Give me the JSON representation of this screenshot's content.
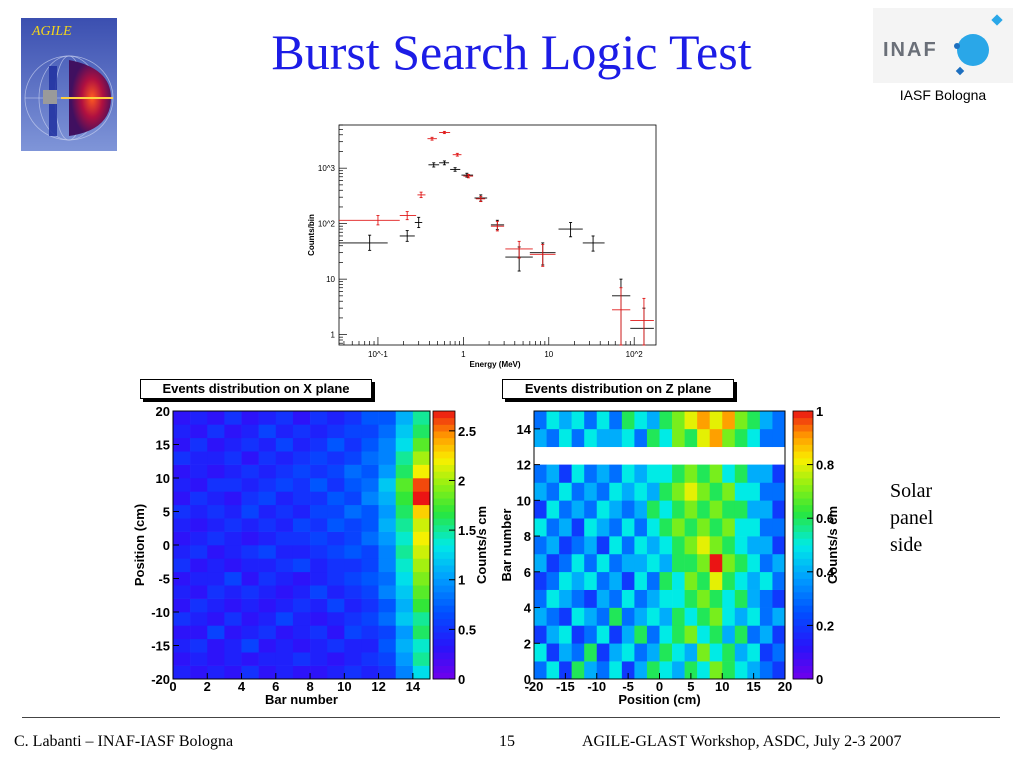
{
  "slide": {
    "title": "Burst Search Logic Test",
    "agile_logo_text": "AGILE",
    "inaf_logo_text": "INAF",
    "institute": "IASF Bologna",
    "solar_note": "Solar\npanel\nside",
    "footer_left": "C. Labanti – INAF-IASF Bologna",
    "page_number": "15",
    "footer_right": "AGILE-GLAST Workshop, ASDC, July 2-3 2007"
  },
  "colors": {
    "title": "#1c1ce6",
    "series_black": "#000000",
    "series_red": "#e01818"
  },
  "chart_data": [
    {
      "type": "scatter",
      "xlabel": "Energy (MeV)",
      "ylabel": "Counts/bin",
      "xscale": "log",
      "yscale": "log",
      "xlim": [
        0.035,
        180
      ],
      "ylim": [
        0.65,
        6000
      ],
      "xticks": [
        "10^-1",
        "1",
        "10",
        "10^2"
      ],
      "yticks": [
        "1",
        "10",
        "10^2",
        "10^3"
      ],
      "grid": false,
      "series": [
        {
          "color": "#000000",
          "points": [
            {
              "x": 0.08,
              "y": 45,
              "xlo": 0.035,
              "xhi": 0.13,
              "ylo": 33,
              "yhi": 62
            },
            {
              "x": 0.22,
              "y": 60,
              "xlo": 0.18,
              "xhi": 0.27,
              "ylo": 48,
              "yhi": 75
            },
            {
              "x": 0.3,
              "y": 105,
              "xlo": 0.27,
              "xhi": 0.33,
              "ylo": 85,
              "yhi": 130
            },
            {
              "x": 0.45,
              "y": 1150,
              "xlo": 0.39,
              "xhi": 0.52,
              "ylo": 1050,
              "yhi": 1250
            },
            {
              "x": 0.6,
              "y": 1250,
              "xlo": 0.52,
              "xhi": 0.68,
              "ylo": 1150,
              "yhi": 1350
            },
            {
              "x": 0.8,
              "y": 950,
              "xlo": 0.7,
              "xhi": 0.92,
              "ylo": 880,
              "yhi": 1020
            },
            {
              "x": 1.1,
              "y": 750,
              "xlo": 0.95,
              "xhi": 1.3,
              "ylo": 690,
              "yhi": 810
            },
            {
              "x": 1.6,
              "y": 290,
              "xlo": 1.35,
              "xhi": 1.9,
              "ylo": 255,
              "yhi": 330
            },
            {
              "x": 2.5,
              "y": 95,
              "xlo": 2.1,
              "xhi": 3.0,
              "ylo": 78,
              "yhi": 115
            },
            {
              "x": 4.5,
              "y": 25,
              "xlo": 3.1,
              "xhi": 6.5,
              "ylo": 14,
              "yhi": 38
            },
            {
              "x": 8.5,
              "y": 30,
              "xlo": 6.0,
              "xhi": 12.0,
              "ylo": 18,
              "yhi": 45
            },
            {
              "x": 18,
              "y": 80,
              "xlo": 13,
              "xhi": 25,
              "ylo": 58,
              "yhi": 105
            },
            {
              "x": 33,
              "y": 45,
              "xlo": 25,
              "xhi": 45,
              "ylo": 32,
              "yhi": 60
            },
            {
              "x": 70,
              "y": 5,
              "xlo": 55,
              "xhi": 90,
              "ylo": 0.65,
              "yhi": 10
            },
            {
              "x": 130,
              "y": 1.3,
              "xlo": 90,
              "xhi": 170,
              "ylo": 0.65,
              "yhi": 3
            }
          ]
        },
        {
          "color": "#e01818",
          "points": [
            {
              "x": 0.1,
              "y": 115,
              "xlo": 0.035,
              "xhi": 0.18,
              "ylo": 95,
              "yhi": 140
            },
            {
              "x": 0.22,
              "y": 140,
              "xlo": 0.18,
              "xhi": 0.28,
              "ylo": 118,
              "yhi": 165
            },
            {
              "x": 0.32,
              "y": 330,
              "xlo": 0.29,
              "xhi": 0.36,
              "ylo": 295,
              "yhi": 370
            },
            {
              "x": 0.43,
              "y": 3400,
              "xlo": 0.38,
              "xhi": 0.49,
              "ylo": 3200,
              "yhi": 3600
            },
            {
              "x": 0.6,
              "y": 4400,
              "xlo": 0.52,
              "xhi": 0.7,
              "ylo": 4200,
              "yhi": 4600
            },
            {
              "x": 0.85,
              "y": 1750,
              "xlo": 0.75,
              "xhi": 0.95,
              "ylo": 1650,
              "yhi": 1850
            },
            {
              "x": 1.15,
              "y": 720,
              "xlo": 1.0,
              "xhi": 1.3,
              "ylo": 670,
              "yhi": 770
            },
            {
              "x": 1.6,
              "y": 280,
              "xlo": 1.4,
              "xhi": 1.8,
              "ylo": 250,
              "yhi": 310
            },
            {
              "x": 2.5,
              "y": 90,
              "xlo": 2.1,
              "xhi": 3.0,
              "ylo": 74,
              "yhi": 110
            },
            {
              "x": 4.5,
              "y": 35,
              "xlo": 3.1,
              "xhi": 6.5,
              "ylo": 24,
              "yhi": 48
            },
            {
              "x": 8.5,
              "y": 28,
              "xlo": 6.0,
              "xhi": 12.0,
              "ylo": 17,
              "yhi": 42
            },
            {
              "x": 70,
              "y": 2.8,
              "xlo": 55,
              "xhi": 90,
              "ylo": 0.65,
              "yhi": 7
            },
            {
              "x": 130,
              "y": 1.8,
              "xlo": 90,
              "xhi": 170,
              "ylo": 0.65,
              "yhi": 4.5
            }
          ]
        }
      ]
    },
    {
      "type": "heatmap",
      "title": "Events distribution on X plane",
      "xlabel": "Bar number",
      "ylabel": "Position (cm)",
      "colorbar_label": "Counts/s cm",
      "xlim": [
        0,
        15
      ],
      "ylim": [
        -20,
        20
      ],
      "xticks": [
        "0",
        "2",
        "4",
        "6",
        "8",
        "10",
        "12",
        "14"
      ],
      "yticks": [
        "-20",
        "-15",
        "-10",
        "-5",
        "0",
        "5",
        "10",
        "15",
        "20"
      ],
      "colorbar_ticks": [
        "0",
        "0.5",
        "1",
        "1.5",
        "2",
        "2.5"
      ],
      "zlim": [
        0,
        2.7
      ],
      "nx": 15,
      "ny": 20,
      "values": [
        [
          0.4,
          0.3,
          0.4,
          0.3,
          0.5,
          0.3,
          0.4,
          0.3,
          0.3,
          0.4,
          0.5,
          0.4,
          0.5,
          0.9,
          1.3
        ],
        [
          0.3,
          0.4,
          0.3,
          0.4,
          0.3,
          0.4,
          0.4,
          0.5,
          0.4,
          0.3,
          0.4,
          0.5,
          0.6,
          1.0,
          1.5
        ],
        [
          0.4,
          0.5,
          0.3,
          0.4,
          0.6,
          0.3,
          0.4,
          0.3,
          0.4,
          0.5,
          0.4,
          0.4,
          0.7,
          1.1,
          1.4
        ],
        [
          0.3,
          0.3,
          0.6,
          0.3,
          0.4,
          0.5,
          0.3,
          0.4,
          0.5,
          0.3,
          0.6,
          0.5,
          0.6,
          1.0,
          1.6
        ],
        [
          0.5,
          0.4,
          0.3,
          0.5,
          0.3,
          0.4,
          0.6,
          0.4,
          0.3,
          0.4,
          0.5,
          0.6,
          0.8,
          1.2,
          1.5
        ],
        [
          0.3,
          0.5,
          0.4,
          0.3,
          0.4,
          0.3,
          0.4,
          0.5,
          0.4,
          0.6,
          0.4,
          0.5,
          0.7,
          1.1,
          1.7
        ],
        [
          0.4,
          0.3,
          0.5,
          0.4,
          0.5,
          0.4,
          0.3,
          0.4,
          0.6,
          0.4,
          0.5,
          0.6,
          0.9,
          1.2,
          1.8
        ],
        [
          0.3,
          0.4,
          0.4,
          0.6,
          0.3,
          0.5,
          0.4,
          0.3,
          0.4,
          0.5,
          0.6,
          0.7,
          0.8,
          1.3,
          1.9
        ],
        [
          0.5,
          0.3,
          0.4,
          0.3,
          0.4,
          0.4,
          0.5,
          0.6,
          0.4,
          0.5,
          0.5,
          0.6,
          0.9,
          1.4,
          2.0
        ],
        [
          0.4,
          0.5,
          0.3,
          0.4,
          0.5,
          0.6,
          0.4,
          0.4,
          0.5,
          0.6,
          0.7,
          0.6,
          0.9,
          1.5,
          2.1
        ],
        [
          0.3,
          0.4,
          0.5,
          0.4,
          0.3,
          0.4,
          0.5,
          0.5,
          0.6,
          0.5,
          0.6,
          0.8,
          1.0,
          1.4,
          2.2
        ],
        [
          0.4,
          0.3,
          0.4,
          0.5,
          0.4,
          0.5,
          0.4,
          0.6,
          0.5,
          0.7,
          0.6,
          0.7,
          1.1,
          1.5,
          2.1
        ],
        [
          0.5,
          0.4,
          0.5,
          0.4,
          0.6,
          0.4,
          0.5,
          0.4,
          0.6,
          0.6,
          0.8,
          0.7,
          1.0,
          1.6,
          2.3
        ],
        [
          0.3,
          0.5,
          0.4,
          0.3,
          0.5,
          0.6,
          0.4,
          0.5,
          0.5,
          0.7,
          0.6,
          0.9,
          1.1,
          1.7,
          2.7
        ],
        [
          0.4,
          0.3,
          0.5,
          0.5,
          0.4,
          0.5,
          0.6,
          0.5,
          0.7,
          0.5,
          0.7,
          0.8,
          1.2,
          1.8,
          2.6
        ],
        [
          0.3,
          0.4,
          0.3,
          0.4,
          0.5,
          0.4,
          0.5,
          0.6,
          0.5,
          0.6,
          0.8,
          0.7,
          1.0,
          1.6,
          2.2
        ],
        [
          0.5,
          0.4,
          0.4,
          0.5,
          0.3,
          0.5,
          0.4,
          0.5,
          0.6,
          0.5,
          0.6,
          0.8,
          0.9,
          1.5,
          2.0
        ],
        [
          0.3,
          0.5,
          0.3,
          0.4,
          0.5,
          0.4,
          0.6,
          0.4,
          0.5,
          0.7,
          0.5,
          0.7,
          0.9,
          1.3,
          1.8
        ],
        [
          0.4,
          0.3,
          0.5,
          0.3,
          0.4,
          0.6,
          0.4,
          0.5,
          0.4,
          0.5,
          0.6,
          0.6,
          0.8,
          1.2,
          1.6
        ],
        [
          0.3,
          0.4,
          0.3,
          0.5,
          0.3,
          0.4,
          0.5,
          0.3,
          0.5,
          0.4,
          0.5,
          0.7,
          0.7,
          1.1,
          1.5
        ]
      ]
    },
    {
      "type": "heatmap",
      "title": "Events distribution on Z plane",
      "xlabel": "Position (cm)",
      "ylabel": "Bar number",
      "colorbar_label": "Counts/s cm",
      "xlim": [
        -20,
        20
      ],
      "ylim": [
        0,
        15
      ],
      "xticks": [
        "-20",
        "-15",
        "-10",
        "-5",
        "0",
        "5",
        "10",
        "15",
        "20"
      ],
      "yticks": [
        "0",
        "2",
        "4",
        "6",
        "8",
        "10",
        "12",
        "14"
      ],
      "colorbar_ticks": [
        "0",
        "0.2",
        "0.4",
        "0.6",
        "0.8",
        "1"
      ],
      "zlim": [
        0,
        1
      ],
      "nx": 20,
      "ny": 15,
      "empty_rows": [
        12
      ],
      "values": [
        [
          0.3,
          0.5,
          0.2,
          0.6,
          0.4,
          0.3,
          0.5,
          0.2,
          0.4,
          0.6,
          0.5,
          0.4,
          0.6,
          0.5,
          0.7,
          0.6,
          0.5,
          0.4,
          0.3,
          0.2
        ],
        [
          0.5,
          0.2,
          0.4,
          0.3,
          0.6,
          0.2,
          0.4,
          0.5,
          0.3,
          0.4,
          0.6,
          0.5,
          0.4,
          0.7,
          0.5,
          0.6,
          0.4,
          0.5,
          0.2,
          0.3
        ],
        [
          0.2,
          0.4,
          0.5,
          0.2,
          0.3,
          0.5,
          0.2,
          0.4,
          0.6,
          0.3,
          0.5,
          0.6,
          0.7,
          0.5,
          0.6,
          0.4,
          0.6,
          0.3,
          0.4,
          0.2
        ],
        [
          0.4,
          0.3,
          0.2,
          0.5,
          0.4,
          0.3,
          0.6,
          0.3,
          0.4,
          0.5,
          0.4,
          0.6,
          0.5,
          0.6,
          0.7,
          0.5,
          0.4,
          0.5,
          0.3,
          0.4
        ],
        [
          0.3,
          0.5,
          0.4,
          0.3,
          0.2,
          0.4,
          0.3,
          0.5,
          0.3,
          0.4,
          0.5,
          0.5,
          0.6,
          0.7,
          0.6,
          0.5,
          0.6,
          0.4,
          0.3,
          0.2
        ],
        [
          0.2,
          0.3,
          0.5,
          0.4,
          0.5,
          0.3,
          0.4,
          0.2,
          0.5,
          0.3,
          0.6,
          0.5,
          0.7,
          0.6,
          0.8,
          0.6,
          0.5,
          0.4,
          0.5,
          0.3
        ],
        [
          0.4,
          0.2,
          0.3,
          0.5,
          0.3,
          0.5,
          0.3,
          0.4,
          0.4,
          0.5,
          0.4,
          0.6,
          0.6,
          0.7,
          1.0,
          0.7,
          0.6,
          0.5,
          0.3,
          0.4
        ],
        [
          0.3,
          0.4,
          0.2,
          0.3,
          0.4,
          0.2,
          0.5,
          0.3,
          0.5,
          0.4,
          0.5,
          0.6,
          0.7,
          0.8,
          0.7,
          0.6,
          0.5,
          0.4,
          0.4,
          0.2
        ],
        [
          0.5,
          0.3,
          0.4,
          0.2,
          0.5,
          0.4,
          0.3,
          0.5,
          0.3,
          0.5,
          0.6,
          0.7,
          0.6,
          0.7,
          0.6,
          0.7,
          0.5,
          0.5,
          0.3,
          0.3
        ],
        [
          0.2,
          0.5,
          0.3,
          0.4,
          0.3,
          0.5,
          0.4,
          0.3,
          0.4,
          0.6,
          0.5,
          0.6,
          0.7,
          0.6,
          0.7,
          0.6,
          0.6,
          0.4,
          0.4,
          0.2
        ],
        [
          0.4,
          0.3,
          0.5,
          0.3,
          0.4,
          0.3,
          0.5,
          0.4,
          0.5,
          0.4,
          0.6,
          0.7,
          0.8,
          0.7,
          0.6,
          0.7,
          0.5,
          0.5,
          0.3,
          0.3
        ],
        [
          0.3,
          0.4,
          0.2,
          0.5,
          0.3,
          0.4,
          0.3,
          0.5,
          0.4,
          0.5,
          0.5,
          0.6,
          0.7,
          0.6,
          0.7,
          0.5,
          0.6,
          0.4,
          0.4,
          0.2
        ],
        [
          0,
          0,
          0,
          0,
          0,
          0,
          0,
          0,
          0,
          0,
          0,
          0,
          0,
          0,
          0,
          0,
          0,
          0,
          0,
          0
        ],
        [
          0.4,
          0.3,
          0.5,
          0.3,
          0.5,
          0.4,
          0.4,
          0.5,
          0.3,
          0.6,
          0.5,
          0.7,
          0.6,
          0.8,
          0.9,
          0.7,
          0.6,
          0.5,
          0.3,
          0.3
        ],
        [
          0.3,
          0.5,
          0.4,
          0.5,
          0.3,
          0.5,
          0.3,
          0.6,
          0.5,
          0.4,
          0.6,
          0.7,
          0.8,
          0.9,
          0.8,
          0.9,
          0.7,
          0.6,
          0.4,
          0.3
        ]
      ]
    }
  ]
}
